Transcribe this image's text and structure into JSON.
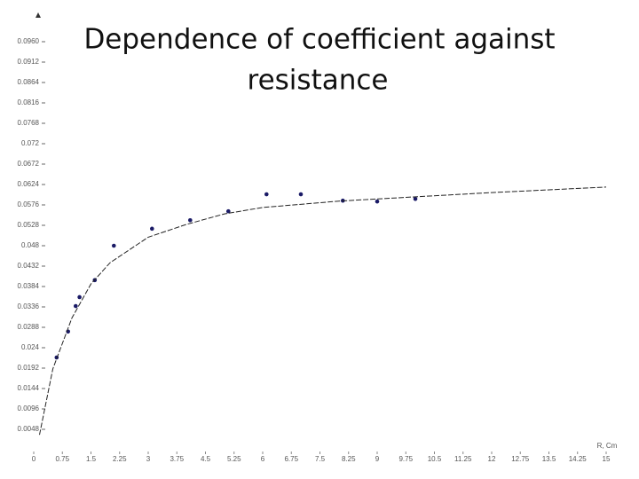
{
  "chart_data": {
    "type": "scatter",
    "title_lines": [
      "Dependence of coefficient against",
      "resistance"
    ],
    "x_label": "R, Cm",
    "xlim": [
      0,
      15
    ],
    "xticks": [
      0,
      0.75,
      1.5,
      2.25,
      3,
      3.75,
      4.5,
      5.25,
      6,
      6.75,
      7.5,
      8.25,
      9,
      9.75,
      10.5,
      11.25,
      12,
      12.75,
      13.5,
      14.25,
      15
    ],
    "ylim": [
      0,
      0.096
    ],
    "yticks": [
      0.0048,
      0.0096,
      0.0144,
      0.0192,
      0.024,
      0.0288,
      0.0336,
      0.0384,
      0.0432,
      0.048,
      0.0528,
      0.0576,
      0.0624,
      0.0672,
      0.072,
      0.0768,
      0.0816,
      0.0864,
      0.0912,
      {
        "value": 0.096,
        "label": "0.0960"
      }
    ],
    "series": [
      {
        "type": "scatter",
        "color": "#1a1a66",
        "x": [
          0.6,
          0.9,
          1.1,
          1.2,
          1.6,
          2.1,
          3.1,
          4.1,
          5.1,
          6.1,
          7.0,
          8.1,
          9.0,
          10.0
        ],
        "values": [
          0.0217,
          0.0278,
          0.0338,
          0.0359,
          0.0399,
          0.048,
          0.052,
          0.054,
          0.0561,
          0.0601,
          0.0601,
          0.0586,
          0.0584,
          0.059
        ]
      },
      {
        "type": "line",
        "color": "#222222",
        "x": [
          0.15,
          0.5,
          1,
          1.5,
          2,
          3,
          4,
          5,
          6,
          8,
          10,
          12,
          15
        ],
        "values": [
          0.0035,
          0.019,
          0.031,
          0.039,
          0.044,
          0.05,
          0.053,
          0.0555,
          0.057,
          0.0585,
          0.0595,
          0.0605,
          0.0618
        ]
      }
    ]
  }
}
